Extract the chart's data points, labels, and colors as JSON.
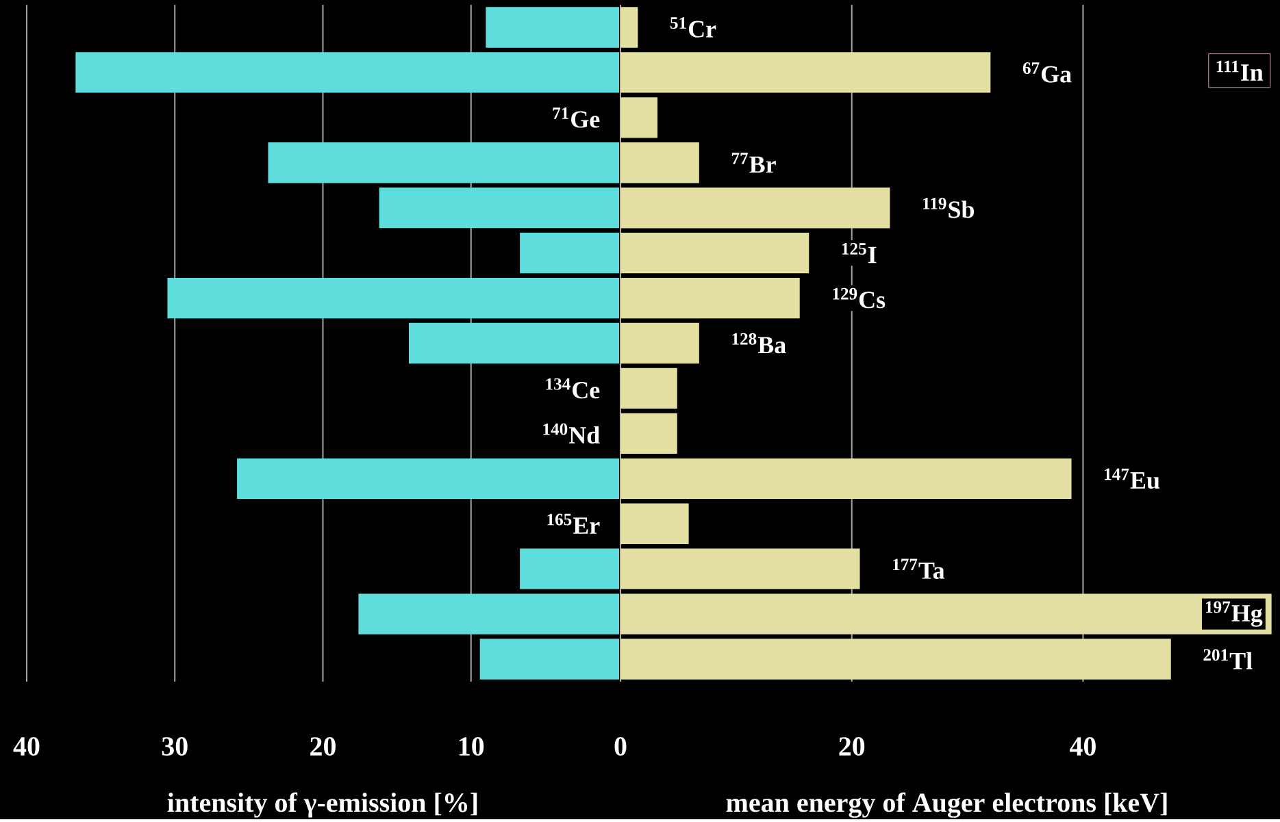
{
  "chart_data": [
    {
      "type": "bar",
      "orientation": "horizontal",
      "xlabel": "intensity of γ-emission [%]",
      "categories": [
        null,
        null,
        null,
        null,
        null,
        null,
        null,
        null,
        null,
        null,
        null,
        null,
        null,
        null,
        null
      ],
      "values": [
        9.0,
        36.7,
        null,
        23.7,
        16.2,
        6.7,
        30.5,
        14.2,
        null,
        null,
        25.8,
        null,
        6.7,
        17.6,
        9.4
      ],
      "color": "#5fdcdc",
      "xlim": [
        40,
        0
      ],
      "xticks": [
        40,
        30,
        20,
        10
      ],
      "grid": "x"
    },
    {
      "type": "bar",
      "orientation": "horizontal",
      "xlabel": "mean energy of Auger electrons [keV]",
      "categories": [
        "$^{51}$Cr",
        "$^{67}$Ga",
        "$^{71}$Ge",
        "$^{77}$Br",
        "$^{119}$Sb",
        "$^{125}$I",
        "$^{129}$Cs",
        "$^{128}$Ba",
        "$^{134}$Ce",
        "$^{140}$Nd",
        "$^{147}$Eu",
        "$^{165}$Er",
        "$^{177}$Ta",
        "$^{197}$Hg",
        "$^{201}$Tl"
      ],
      "values": [
        1.5,
        32.0,
        3.2,
        6.8,
        23.3,
        16.3,
        15.5,
        6.8,
        4.9,
        4.9,
        39.0,
        5.9,
        20.7,
        56.3,
        47.6
      ],
      "color": "#e4e0a4",
      "xlim": [
        0,
        56.5
      ],
      "xticks": [
        0,
        20,
        40
      ],
      "grid": "x",
      "annotations": [
        "$^{111}$In"
      ]
    }
  ]
}
